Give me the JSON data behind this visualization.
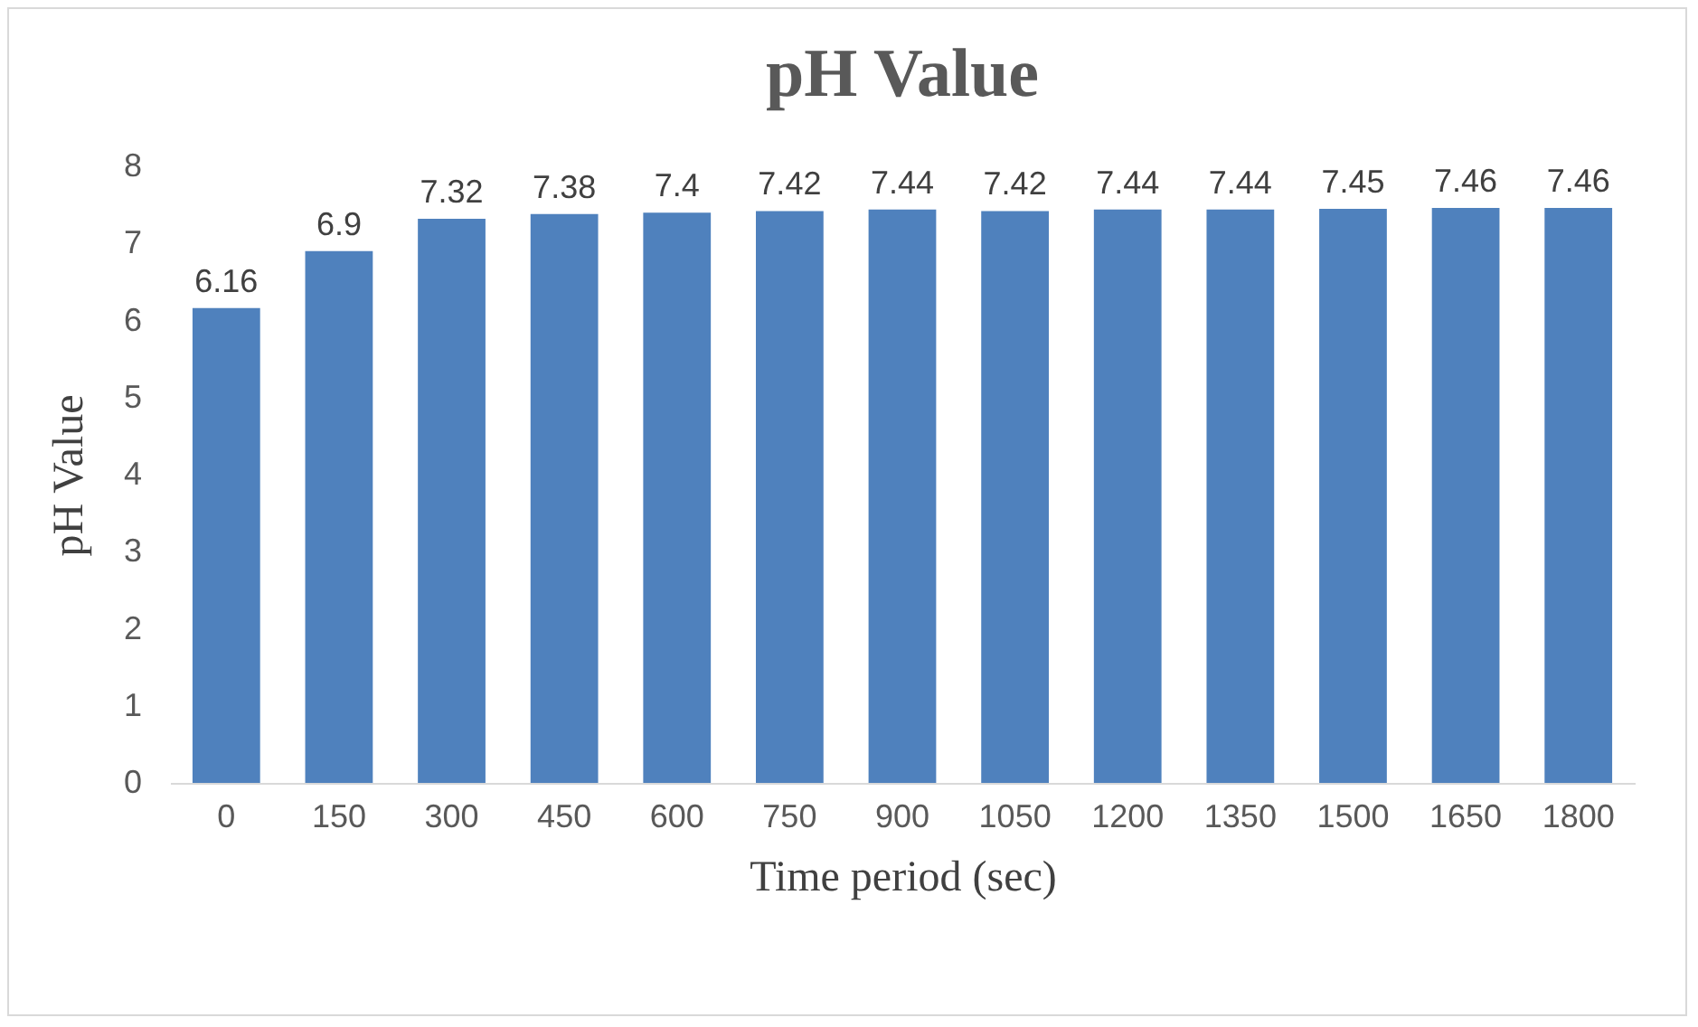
{
  "chart_data": {
    "type": "bar",
    "title": "pH Value",
    "xlabel": "Time period (sec)",
    "ylabel": "pH Value",
    "categories": [
      "0",
      "150",
      "300",
      "450",
      "600",
      "750",
      "900",
      "1050",
      "1200",
      "1350",
      "1500",
      "1650",
      "1800"
    ],
    "values": [
      6.16,
      6.9,
      7.32,
      7.38,
      7.4,
      7.42,
      7.44,
      7.42,
      7.44,
      7.44,
      7.45,
      7.46,
      7.46
    ],
    "color": "#4f81bd",
    "ylim": [
      0,
      8
    ],
    "yticks": [
      0,
      1,
      2,
      3,
      4,
      5,
      6,
      7,
      8
    ],
    "grid": false,
    "data_labels": true
  }
}
